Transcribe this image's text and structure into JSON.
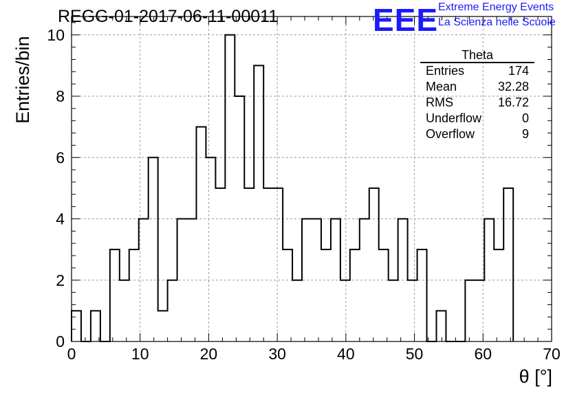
{
  "header": {
    "run_title": "REGG-01-2017-06-11-00011",
    "logo_text": "EEE",
    "logo_line1": "Extreme Energy Events",
    "logo_line2": "La Scienza nelle Scuole",
    "logo_color": "#1a1aff"
  },
  "stats_box": {
    "title": "Theta",
    "rows": [
      {
        "label": "Entries",
        "value": "174"
      },
      {
        "label": "Mean",
        "value": "32.28"
      },
      {
        "label": "RMS",
        "value": "16.72"
      },
      {
        "label": "Underflow",
        "value": "0"
      },
      {
        "label": "Overflow",
        "value": "9"
      }
    ]
  },
  "chart_data": {
    "type": "histogram",
    "title": "REGG-01-2017-06-11-00011",
    "xlabel": "θ [°]",
    "ylabel": "Entries/bin",
    "xlim": [
      0,
      70
    ],
    "ylim": [
      0,
      10.6
    ],
    "bin_width": 1.4,
    "x_ticks": [
      "0",
      "10",
      "20",
      "30",
      "40",
      "50",
      "60",
      "70"
    ],
    "y_ticks": [
      "0",
      "2",
      "4",
      "6",
      "8",
      "10"
    ],
    "grid": true,
    "values": [
      1,
      0,
      1,
      0,
      3,
      2,
      3,
      4,
      6,
      1,
      2,
      4,
      4,
      7,
      6,
      5,
      10,
      8,
      5,
      9,
      5,
      5,
      3,
      2,
      4,
      4,
      3,
      4,
      2,
      3,
      4,
      5,
      3,
      2,
      4,
      2,
      3,
      0,
      1,
      0,
      0,
      2,
      2,
      4,
      3,
      5
    ],
    "line_color": "#000000"
  }
}
